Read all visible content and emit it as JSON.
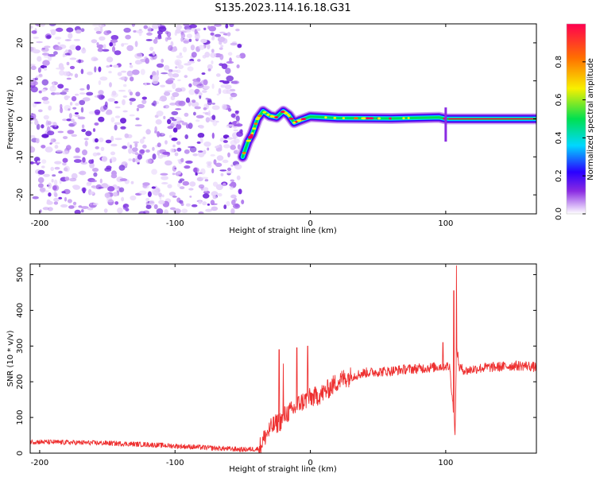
{
  "title": "S135.2023.114.16.18.G31",
  "chart_data": [
    {
      "type": "heatmap",
      "xlabel": "Height of straight line (km)",
      "ylabel": "Frequency (Hz)",
      "xlim": [
        -207,
        167
      ],
      "ylim": [
        -25,
        25
      ],
      "xticks": [
        -200,
        -100,
        0,
        100
      ],
      "yticks": [
        -20,
        -10,
        0,
        10,
        20
      ],
      "colorbar": {
        "label": "Normalized spectral amplitude",
        "range": [
          0,
          1
        ],
        "ticks": [
          0.0,
          0.2,
          0.4,
          0.6,
          0.8
        ],
        "tick_labels": [
          "0.0",
          "0.2",
          "0.4",
          "0.6",
          "0.8"
        ],
        "colormap": [
          "#ffffff",
          "#cfa8f5",
          "#8a2be2",
          "#2a00ff",
          "#00d8ff",
          "#00e050",
          "#f8f000",
          "#ff7000",
          "#ff0050"
        ]
      },
      "features": {
        "noise_region_x": [
          -207,
          -50
        ],
        "track": [
          {
            "x": -50,
            "y": -10
          },
          {
            "x": -46,
            "y": -6
          },
          {
            "x": -43,
            "y": -4
          },
          {
            "x": -39,
            "y": 0
          },
          {
            "x": -35,
            "y": 2
          },
          {
            "x": -30,
            "y": 0.8
          },
          {
            "x": -25,
            "y": 0.4
          },
          {
            "x": -20,
            "y": 2
          },
          {
            "x": -16,
            "y": 1
          },
          {
            "x": -12,
            "y": -1
          },
          {
            "x": -7,
            "y": -0.3
          },
          {
            "x": 0,
            "y": 0.6
          },
          {
            "x": 20,
            "y": 0.2
          },
          {
            "x": 60,
            "y": 0.1
          },
          {
            "x": 95,
            "y": 0.4
          },
          {
            "x": 100,
            "y": 0
          },
          {
            "x": 167,
            "y": 0
          }
        ],
        "streak_x": [
          102,
          167
        ]
      }
    },
    {
      "type": "line",
      "xlabel": "Height of straight line (km)",
      "ylabel": "SNR (10 * v/v)",
      "xlim": [
        -207,
        167
      ],
      "ylim": [
        0,
        530
      ],
      "xticks": [
        -200,
        -100,
        0,
        100
      ],
      "yticks": [
        0,
        100,
        200,
        300,
        400,
        500
      ],
      "color": "#ee3030",
      "series": [
        {
          "x": [
            -207,
            -180,
            -150,
            -120,
            -100,
            -80,
            -60,
            -50,
            -38,
            -33,
            -28,
            -22,
            -18,
            -13,
            -8,
            -3,
            0,
            5,
            10,
            15,
            20,
            25,
            30,
            40,
            50,
            60,
            70,
            80,
            90,
            95,
            100,
            103,
            105,
            107,
            108,
            110,
            115,
            120,
            130,
            140,
            150,
            160,
            167
          ],
          "y": [
            32,
            30,
            28,
            24,
            20,
            16,
            12,
            10,
            12,
            50,
            75,
            90,
            110,
            120,
            140,
            150,
            155,
            160,
            170,
            185,
            200,
            210,
            215,
            225,
            228,
            230,
            235,
            237,
            240,
            242,
            245,
            240,
            150,
            60,
            300,
            240,
            230,
            235,
            240,
            242,
            245,
            245,
            240
          ],
          "spikes": [
            {
              "x": -23,
              "y": 290
            },
            {
              "x": -20,
              "y": 250
            },
            {
              "x": -10,
              "y": 295
            },
            {
              "x": -2,
              "y": 300
            },
            {
              "x": 98,
              "y": 310
            },
            {
              "x": 106,
              "y": 455
            },
            {
              "x": 108,
              "y": 525
            }
          ]
        }
      ]
    }
  ]
}
